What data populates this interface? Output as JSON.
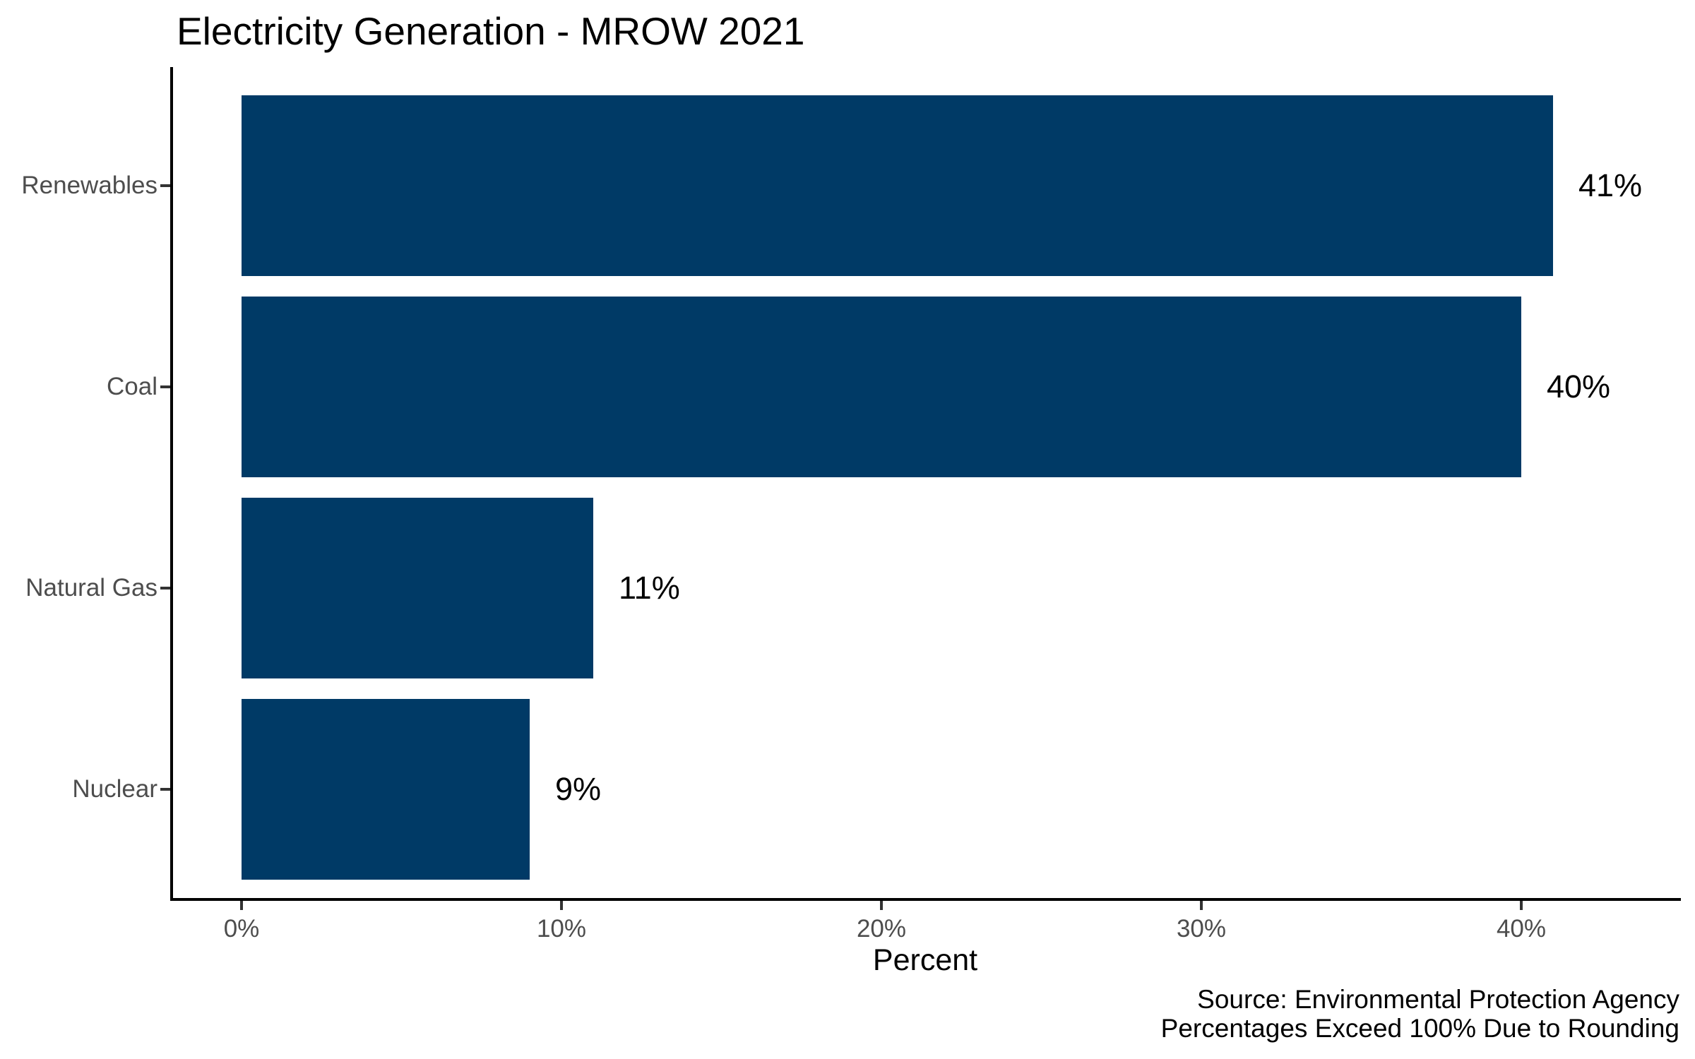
{
  "chart_data": {
    "type": "bar",
    "orientation": "horizontal",
    "title": "Electricity Generation - MROW 2021",
    "categories": [
      "Renewables",
      "Coal",
      "Natural Gas",
      "Nuclear"
    ],
    "values": [
      41,
      40,
      11,
      9
    ],
    "value_labels": [
      "41%",
      "40%",
      "11%",
      "9%"
    ],
    "xlabel": "Percent",
    "x_ticks": [
      0,
      10,
      20,
      30,
      40
    ],
    "x_tick_labels": [
      "0%",
      "10%",
      "20%",
      "30%",
      "40%"
    ],
    "xlim": [
      0,
      45
    ],
    "grid": false,
    "legend": false,
    "bar_color": "#003A66",
    "axis_text_color": "#4D4D4D",
    "axis_line_color": "#000000",
    "caption_lines": [
      "Source: Environmental Protection Agency",
      "Percentages Exceed 100% Due to Rounding"
    ]
  }
}
